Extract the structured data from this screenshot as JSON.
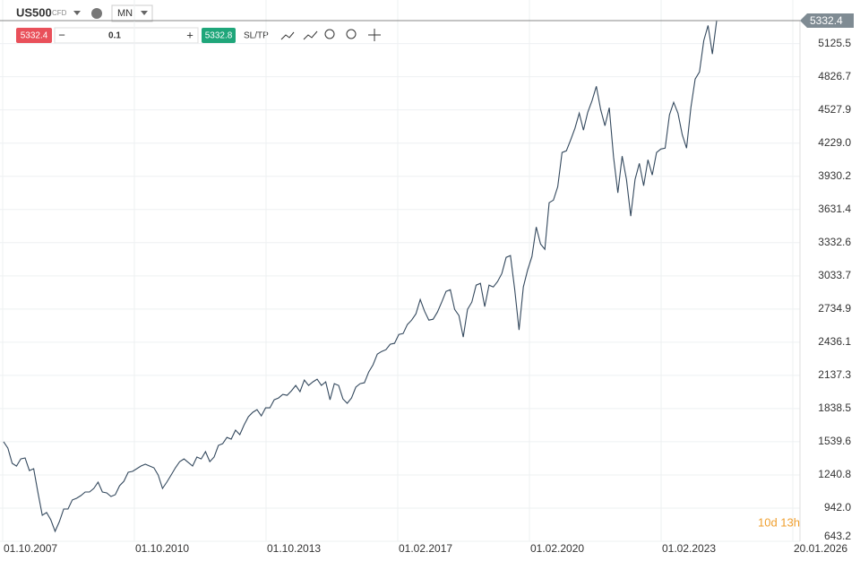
{
  "toolbar": {
    "symbol": "US500",
    "instrument_type": "CFD",
    "timeframe": "MN",
    "sell_price": "5332.4",
    "quantity": "0.1",
    "buy_price": "5332.8",
    "sltp": "SL/TP"
  },
  "countdown": "10d 13h",
  "current_price": "5332.4",
  "chart_data": {
    "type": "line",
    "color": "#34495e",
    "grid": true,
    "xticks": [
      "01.10.2007",
      "01.10.2010",
      "01.10.2013",
      "01.02.2017",
      "01.02.2020",
      "01.02.2023",
      "20.01.2026"
    ],
    "ylim": [
      643.2,
      5332.4
    ],
    "yticks": [
      643.2,
      {
        "value": 942,
        "label": "942.0"
      },
      1240.8,
      1539.6,
      1838.5,
      2137.3,
      2436.1,
      2734.9,
      3033.7,
      3332.6,
      3631.4,
      3930.2,
      {
        "value": 4229,
        "label": "4229.0"
      },
      4527.9,
      4826.7,
      5125.5
    ],
    "values": [
      1540,
      1482,
      1345,
      1320,
      1385,
      1394,
      1280,
      1297,
      1080,
      877,
      902,
      837,
      733,
      821,
      934,
      934,
      1015,
      1031,
      1055,
      1087,
      1087,
      1119,
      1176,
      1087,
      1079,
      1047,
      1063,
      1144,
      1184,
      1265,
      1273,
      1297,
      1321,
      1337,
      1321,
      1305,
      1240,
      1119,
      1176,
      1240,
      1305,
      1361,
      1385,
      1353,
      1321,
      1402,
      1385,
      1450,
      1361,
      1402,
      1507,
      1523,
      1579,
      1563,
      1644,
      1604,
      1692,
      1765,
      1805,
      1829,
      1772,
      1845,
      1845,
      1918,
      1934,
      1966,
      1958,
      1998,
      2047,
      1990,
      2095,
      2047,
      2079,
      2103,
      2047,
      2079,
      1918,
      2063,
      2047,
      1926,
      1886,
      1934,
      2031,
      2063,
      2071,
      2168,
      2232,
      2329,
      2353,
      2369,
      2418,
      2426,
      2506,
      2514,
      2595,
      2635,
      2692,
      2821,
      2716,
      2635,
      2643,
      2708,
      2797,
      2893,
      2909,
      2732,
      2676,
      2482,
      2732,
      2797,
      2950,
      2966,
      2756,
      2950,
      2934,
      2982,
      3055,
      3200,
      3216,
      2909,
      2546,
      2934,
      3087,
      3208,
      3474,
      3321,
      3273,
      3692,
      3716,
      3837,
      4144,
      4160,
      4257,
      4362,
      4499,
      4346,
      4507,
      4612,
      4741,
      4532,
      4386,
      4548,
      4104,
      3781,
      4112,
      3902,
      3571,
      3902,
      4047,
      3845,
      4079,
      3942,
      4144,
      4176,
      4184,
      4483,
      4596,
      4499,
      4305,
      4184,
      4548,
      4806,
      4870,
      5152,
      5289,
      5031,
      5332.4
    ]
  }
}
